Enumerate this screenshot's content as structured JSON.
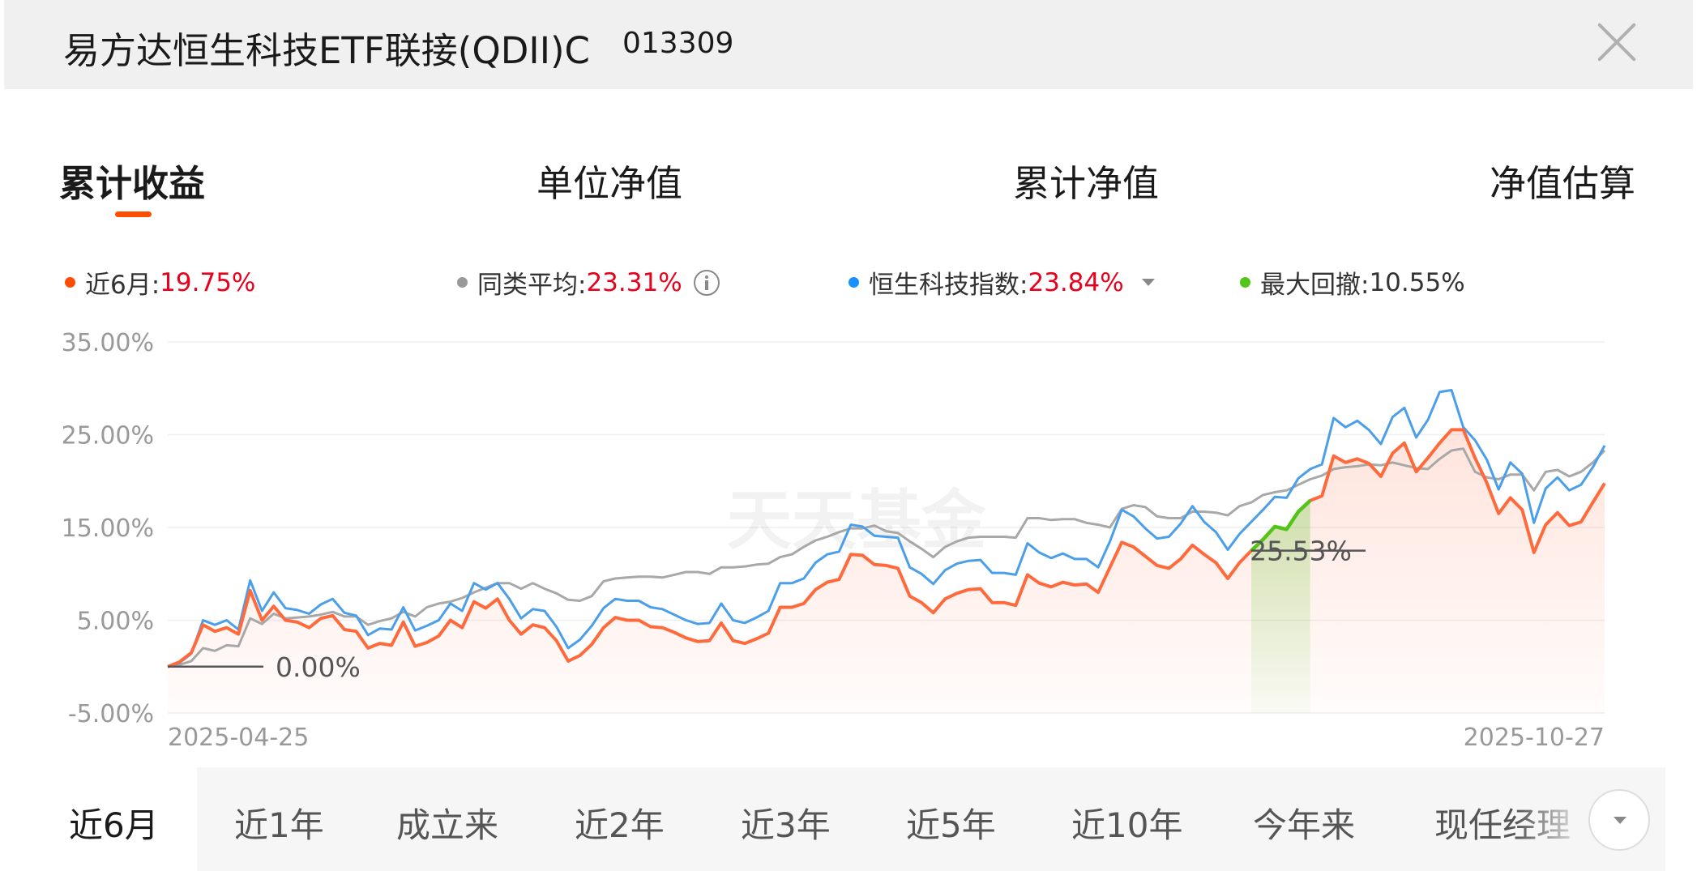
{
  "header": {
    "fund_name": "易方达恒生科技ETF联接(QDII)C",
    "fund_code": "013309"
  },
  "tabs": [
    "累计收益",
    "单位净值",
    "累计净值",
    "净值估算"
  ],
  "legend": {
    "fund": {
      "label": "近6月:",
      "value": "19.75%",
      "color": "#ff4d00"
    },
    "peer_avg": {
      "label": "同类平均:",
      "value": "23.31%",
      "color": "#999999"
    },
    "index": {
      "label": "恒生科技指数:",
      "value": "23.84%",
      "color": "#1890ff"
    },
    "drawdown": {
      "label": "最大回撤:",
      "value": "10.55%",
      "color": "#52c41a"
    }
  },
  "watermark": "天天基金",
  "chart_data": {
    "type": "line",
    "ylim": [
      -5,
      35
    ],
    "y_ticks": [
      "35.00%",
      "25.00%",
      "15.00%",
      "5.00%",
      "-5.00%"
    ],
    "y_tick_values": [
      35,
      25,
      15,
      5,
      -5
    ],
    "x_labels": [
      "2025-04-25",
      "2025-10-27"
    ],
    "annotations": [
      "0.00%",
      "25.53%"
    ],
    "drawdown_range": [
      92,
      97
    ],
    "series": [
      {
        "name": "近6月",
        "color": "#ff6a3d",
        "values": [
          0,
          0.5,
          1.5,
          4.5,
          3.8,
          4.2,
          3.5,
          8.2,
          5.0,
          6.5,
          5.0,
          4.8,
          4.2,
          5.2,
          5.5,
          4.0,
          3.8,
          2.0,
          2.5,
          2.3,
          4.8,
          2.2,
          2.6,
          3.3,
          5.0,
          4.2,
          7.0,
          6.3,
          7.3,
          5.0,
          3.5,
          4.5,
          4.2,
          2.8,
          0.6,
          1.2,
          2.4,
          4.2,
          5.3,
          5.0,
          5.0,
          4.3,
          4.2,
          3.7,
          3.1,
          2.7,
          2.8,
          4.7,
          2.8,
          2.5,
          3.0,
          3.6,
          6.4,
          6.4,
          6.8,
          8.3,
          9.1,
          9.4,
          12.1,
          12.0,
          11.0,
          10.9,
          10.6,
          7.6,
          6.9,
          5.8,
          7.3,
          7.9,
          8.3,
          8.4,
          6.9,
          6.9,
          6.6,
          9.9,
          9.0,
          8.6,
          9.1,
          8.8,
          8.9,
          8.0,
          10.7,
          13.4,
          12.9,
          11.9,
          10.9,
          10.6,
          11.6,
          13.1,
          12.1,
          11.2,
          9.5,
          11.2,
          12.5,
          13.7,
          15.1,
          14.8,
          16.7,
          17.9,
          18.4,
          22.7,
          22.0,
          22.4,
          21.9,
          20.5,
          23.0,
          24.1,
          21.0,
          22.5,
          24.1,
          25.53,
          25.53,
          22.5,
          19.8,
          16.5,
          18.2,
          16.9,
          12.3,
          15.3,
          16.6,
          15.2,
          15.6,
          17.7,
          19.75
        ]
      },
      {
        "name": "同类平均",
        "color": "#a8a8a8",
        "values": [
          0,
          0.2,
          0.6,
          2.0,
          1.7,
          2.3,
          2.2,
          5.2,
          4.6,
          5.7,
          5.2,
          5.3,
          5.4,
          5.6,
          5.9,
          5.4,
          5.4,
          4.5,
          4.9,
          5.2,
          5.9,
          5.4,
          6.4,
          6.8,
          7.0,
          7.4,
          8.0,
          8.5,
          9.0,
          9.0,
          8.4,
          9.0,
          8.4,
          7.9,
          7.2,
          7.1,
          7.6,
          9.2,
          9.5,
          9.6,
          9.7,
          9.7,
          9.6,
          9.9,
          10.2,
          10.2,
          10.0,
          10.7,
          10.7,
          10.8,
          11.0,
          11.1,
          11.8,
          12.1,
          12.9,
          13.6,
          14.0,
          14.5,
          14.9,
          14.9,
          15.2,
          14.6,
          14.4,
          13.5,
          12.7,
          11.8,
          12.9,
          13.5,
          13.9,
          14.0,
          14.0,
          14.0,
          13.9,
          16.0,
          16.0,
          15.8,
          15.9,
          15.9,
          15.5,
          15.3,
          15.0,
          17.0,
          17.4,
          17.2,
          16.2,
          16.0,
          16.0,
          16.7,
          16.7,
          16.6,
          16.3,
          17.3,
          17.7,
          18.5,
          18.8,
          19.0,
          19.6,
          20.2,
          20.6,
          21.3,
          21.5,
          21.6,
          21.8,
          21.7,
          22.0,
          21.7,
          21.4,
          21.3,
          22.4,
          23.3,
          23.5,
          21.0,
          20.4,
          20.2,
          20.7,
          20.7,
          19.0,
          21.0,
          21.2,
          20.5,
          21.0,
          22.0,
          23.31
        ]
      },
      {
        "name": "恒生科技指数",
        "color": "#4a9eea",
        "values": [
          0,
          0.4,
          1.4,
          5.0,
          4.5,
          5.0,
          4.0,
          9.3,
          6.0,
          8.0,
          6.3,
          6.1,
          5.7,
          6.7,
          7.3,
          5.8,
          5.5,
          3.4,
          4.1,
          4.0,
          6.4,
          3.9,
          4.4,
          5.0,
          6.8,
          6.0,
          9.0,
          8.3,
          9.0,
          7.3,
          5.2,
          6.2,
          6.0,
          4.3,
          2.0,
          2.9,
          4.4,
          6.3,
          7.3,
          7.1,
          7.1,
          6.4,
          6.2,
          5.6,
          5.0,
          4.6,
          4.7,
          6.8,
          5.0,
          4.7,
          5.3,
          6.0,
          9.0,
          9.0,
          9.5,
          11.2,
          12.1,
          12.4,
          15.3,
          15.1,
          14.1,
          14.0,
          13.9,
          10.7,
          10.0,
          8.9,
          10.4,
          11.1,
          11.4,
          11.5,
          10.1,
          10.1,
          9.9,
          13.3,
          12.3,
          11.7,
          12.2,
          11.6,
          11.6,
          10.7,
          13.5,
          16.9,
          16.2,
          14.9,
          13.8,
          14.0,
          15.4,
          17.3,
          15.6,
          14.5,
          12.6,
          14.3,
          15.6,
          16.9,
          18.3,
          18.2,
          20.3,
          21.3,
          21.8,
          26.8,
          25.8,
          26.5,
          25.5,
          24.0,
          26.9,
          27.9,
          24.7,
          26.6,
          29.6,
          29.8,
          25.8,
          24.4,
          22.3,
          19.1,
          22.0,
          20.8,
          15.5,
          19.2,
          20.4,
          19.0,
          19.6,
          21.5,
          23.84
        ]
      }
    ]
  },
  "x_axis": {
    "start": "2025-04-25",
    "end": "2025-10-27"
  },
  "periods": [
    "近6月",
    "近1年",
    "成立来",
    "近2年",
    "近3年",
    "近5年",
    "近10年",
    "今年来",
    "现任经理"
  ]
}
